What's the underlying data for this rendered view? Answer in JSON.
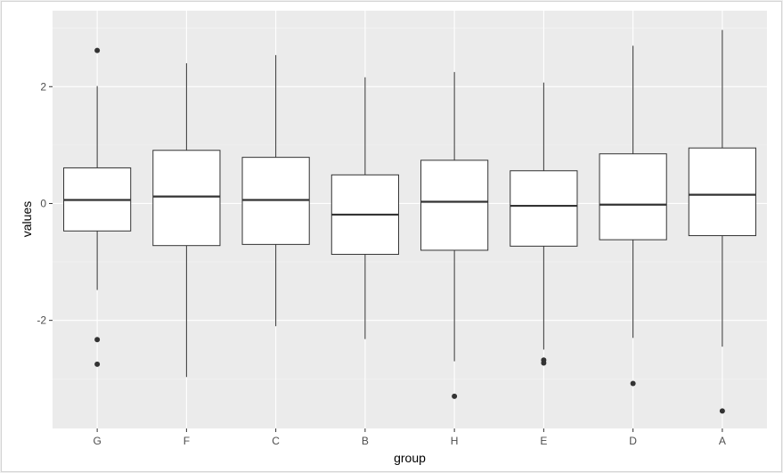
{
  "chart_data": {
    "type": "boxplot",
    "title": "",
    "xlabel": "group",
    "ylabel": "values",
    "categories": [
      "G",
      "F",
      "C",
      "B",
      "H",
      "E",
      "D",
      "A"
    ],
    "ylim": [
      -3.85,
      3.3
    ],
    "yticks": [
      -2,
      0,
      2
    ],
    "ytick_labels": [
      "-2",
      "0",
      "2"
    ],
    "grid": true,
    "boxes": [
      {
        "group": "G",
        "whisker_low": -1.48,
        "q1": -0.47,
        "median": 0.06,
        "q3": 0.61,
        "whisker_high": 2.01,
        "outliers": [
          2.62,
          -2.33,
          -2.75
        ]
      },
      {
        "group": "F",
        "whisker_low": -2.97,
        "q1": -0.72,
        "median": 0.12,
        "q3": 0.91,
        "whisker_high": 2.4,
        "outliers": []
      },
      {
        "group": "C",
        "whisker_low": -2.1,
        "q1": -0.7,
        "median": 0.06,
        "q3": 0.79,
        "whisker_high": 2.54,
        "outliers": []
      },
      {
        "group": "B",
        "whisker_low": -2.32,
        "q1": -0.87,
        "median": -0.19,
        "q3": 0.49,
        "whisker_high": 2.16,
        "outliers": []
      },
      {
        "group": "H",
        "whisker_low": -2.7,
        "q1": -0.8,
        "median": 0.03,
        "q3": 0.74,
        "whisker_high": 2.25,
        "outliers": [
          -3.3
        ]
      },
      {
        "group": "E",
        "whisker_low": -2.5,
        "q1": -0.73,
        "median": -0.04,
        "q3": 0.56,
        "whisker_high": 2.07,
        "outliers": [
          -2.68,
          -2.73
        ]
      },
      {
        "group": "D",
        "whisker_low": -2.3,
        "q1": -0.62,
        "median": -0.02,
        "q3": 0.85,
        "whisker_high": 2.7,
        "outliers": [
          -3.08
        ]
      },
      {
        "group": "A",
        "whisker_low": -2.45,
        "q1": -0.55,
        "median": 0.15,
        "q3": 0.95,
        "whisker_high": 2.97,
        "outliers": [
          -3.55
        ]
      }
    ],
    "colors": {
      "panel_background": "#ebebeb",
      "grid_major": "#ffffff",
      "grid_minor": "#f5f5f5",
      "box_fill": "#ffffff",
      "box_stroke": "#333333",
      "outlier": "#333333"
    }
  }
}
